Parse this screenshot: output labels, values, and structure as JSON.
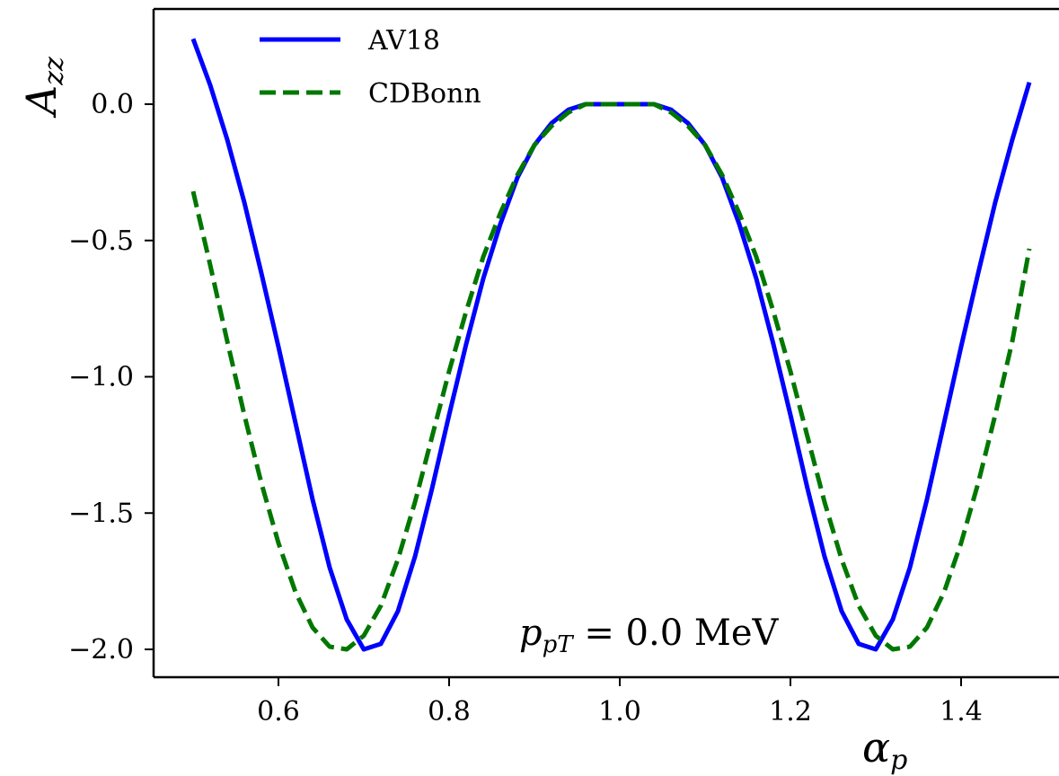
{
  "chart_data": {
    "type": "line",
    "title": "",
    "xlabel": "αp",
    "ylabel": "Azz",
    "xlim": [
      0.45,
      1.5
    ],
    "ylim": [
      -2.1,
      0.35
    ],
    "xticks": [
      0.6,
      0.8,
      1.0,
      1.2,
      1.4
    ],
    "xtick_labels": [
      "0.6",
      "0.8",
      "1.0",
      "1.2",
      "1.4"
    ],
    "yticks": [
      0.0,
      -0.5,
      -1.0,
      -1.5,
      -2.0
    ],
    "ytick_labels": [
      "0.0",
      "−0.5",
      "−1.0",
      "−1.5",
      "−2.0"
    ],
    "grid": false,
    "legend_position": "top-left",
    "annotation": "ppT = 0.0 MeV",
    "series": [
      {
        "name": "AV18",
        "color": "#0000ff",
        "style": "solid",
        "x": [
          0.5,
          0.52,
          0.54,
          0.56,
          0.58,
          0.6,
          0.62,
          0.64,
          0.66,
          0.68,
          0.7,
          0.72,
          0.74,
          0.76,
          0.78,
          0.8,
          0.82,
          0.84,
          0.86,
          0.88,
          0.9,
          0.92,
          0.94,
          0.96,
          0.98,
          1.0,
          1.02,
          1.04,
          1.06,
          1.08,
          1.1,
          1.12,
          1.14,
          1.16,
          1.18,
          1.2,
          1.22,
          1.24,
          1.26,
          1.28,
          1.3,
          1.32,
          1.34,
          1.36,
          1.38,
          1.4,
          1.42,
          1.44,
          1.46,
          1.48
        ],
        "y": [
          0.24,
          0.07,
          -0.13,
          -0.36,
          -0.62,
          -0.89,
          -1.17,
          -1.45,
          -1.7,
          -1.89,
          -2.0,
          -1.98,
          -1.86,
          -1.66,
          -1.41,
          -1.14,
          -0.88,
          -0.64,
          -0.44,
          -0.27,
          -0.15,
          -0.07,
          -0.02,
          0.0,
          0.0,
          0.0,
          0.0,
          0.0,
          -0.02,
          -0.07,
          -0.15,
          -0.27,
          -0.44,
          -0.64,
          -0.88,
          -1.14,
          -1.41,
          -1.66,
          -1.86,
          -1.98,
          -2.0,
          -1.89,
          -1.7,
          -1.45,
          -1.17,
          -0.89,
          -0.62,
          -0.36,
          -0.13,
          0.08
        ]
      },
      {
        "name": "CDBonn",
        "color": "#007700",
        "style": "dashed",
        "x": [
          0.5,
          0.52,
          0.54,
          0.56,
          0.58,
          0.6,
          0.62,
          0.64,
          0.66,
          0.68,
          0.7,
          0.72,
          0.74,
          0.76,
          0.78,
          0.8,
          0.82,
          0.84,
          0.86,
          0.88,
          0.9,
          0.92,
          0.94,
          0.96,
          0.98,
          1.0,
          1.02,
          1.04,
          1.06,
          1.08,
          1.1,
          1.12,
          1.14,
          1.16,
          1.18,
          1.2,
          1.22,
          1.24,
          1.26,
          1.28,
          1.3,
          1.32,
          1.34,
          1.36,
          1.38,
          1.4,
          1.42,
          1.44,
          1.46,
          1.48
        ],
        "y": [
          -0.32,
          -0.59,
          -0.87,
          -1.14,
          -1.39,
          -1.61,
          -1.79,
          -1.92,
          -1.99,
          -2.0,
          -1.95,
          -1.84,
          -1.67,
          -1.46,
          -1.22,
          -0.98,
          -0.76,
          -0.56,
          -0.4,
          -0.26,
          -0.15,
          -0.08,
          -0.03,
          0.0,
          0.0,
          0.0,
          0.0,
          0.0,
          -0.03,
          -0.08,
          -0.15,
          -0.26,
          -0.4,
          -0.56,
          -0.76,
          -0.98,
          -1.22,
          -1.46,
          -1.67,
          -1.84,
          -1.95,
          -2.0,
          -1.99,
          -1.92,
          -1.79,
          -1.61,
          -1.39,
          -1.14,
          -0.87,
          -0.53
        ]
      }
    ]
  }
}
